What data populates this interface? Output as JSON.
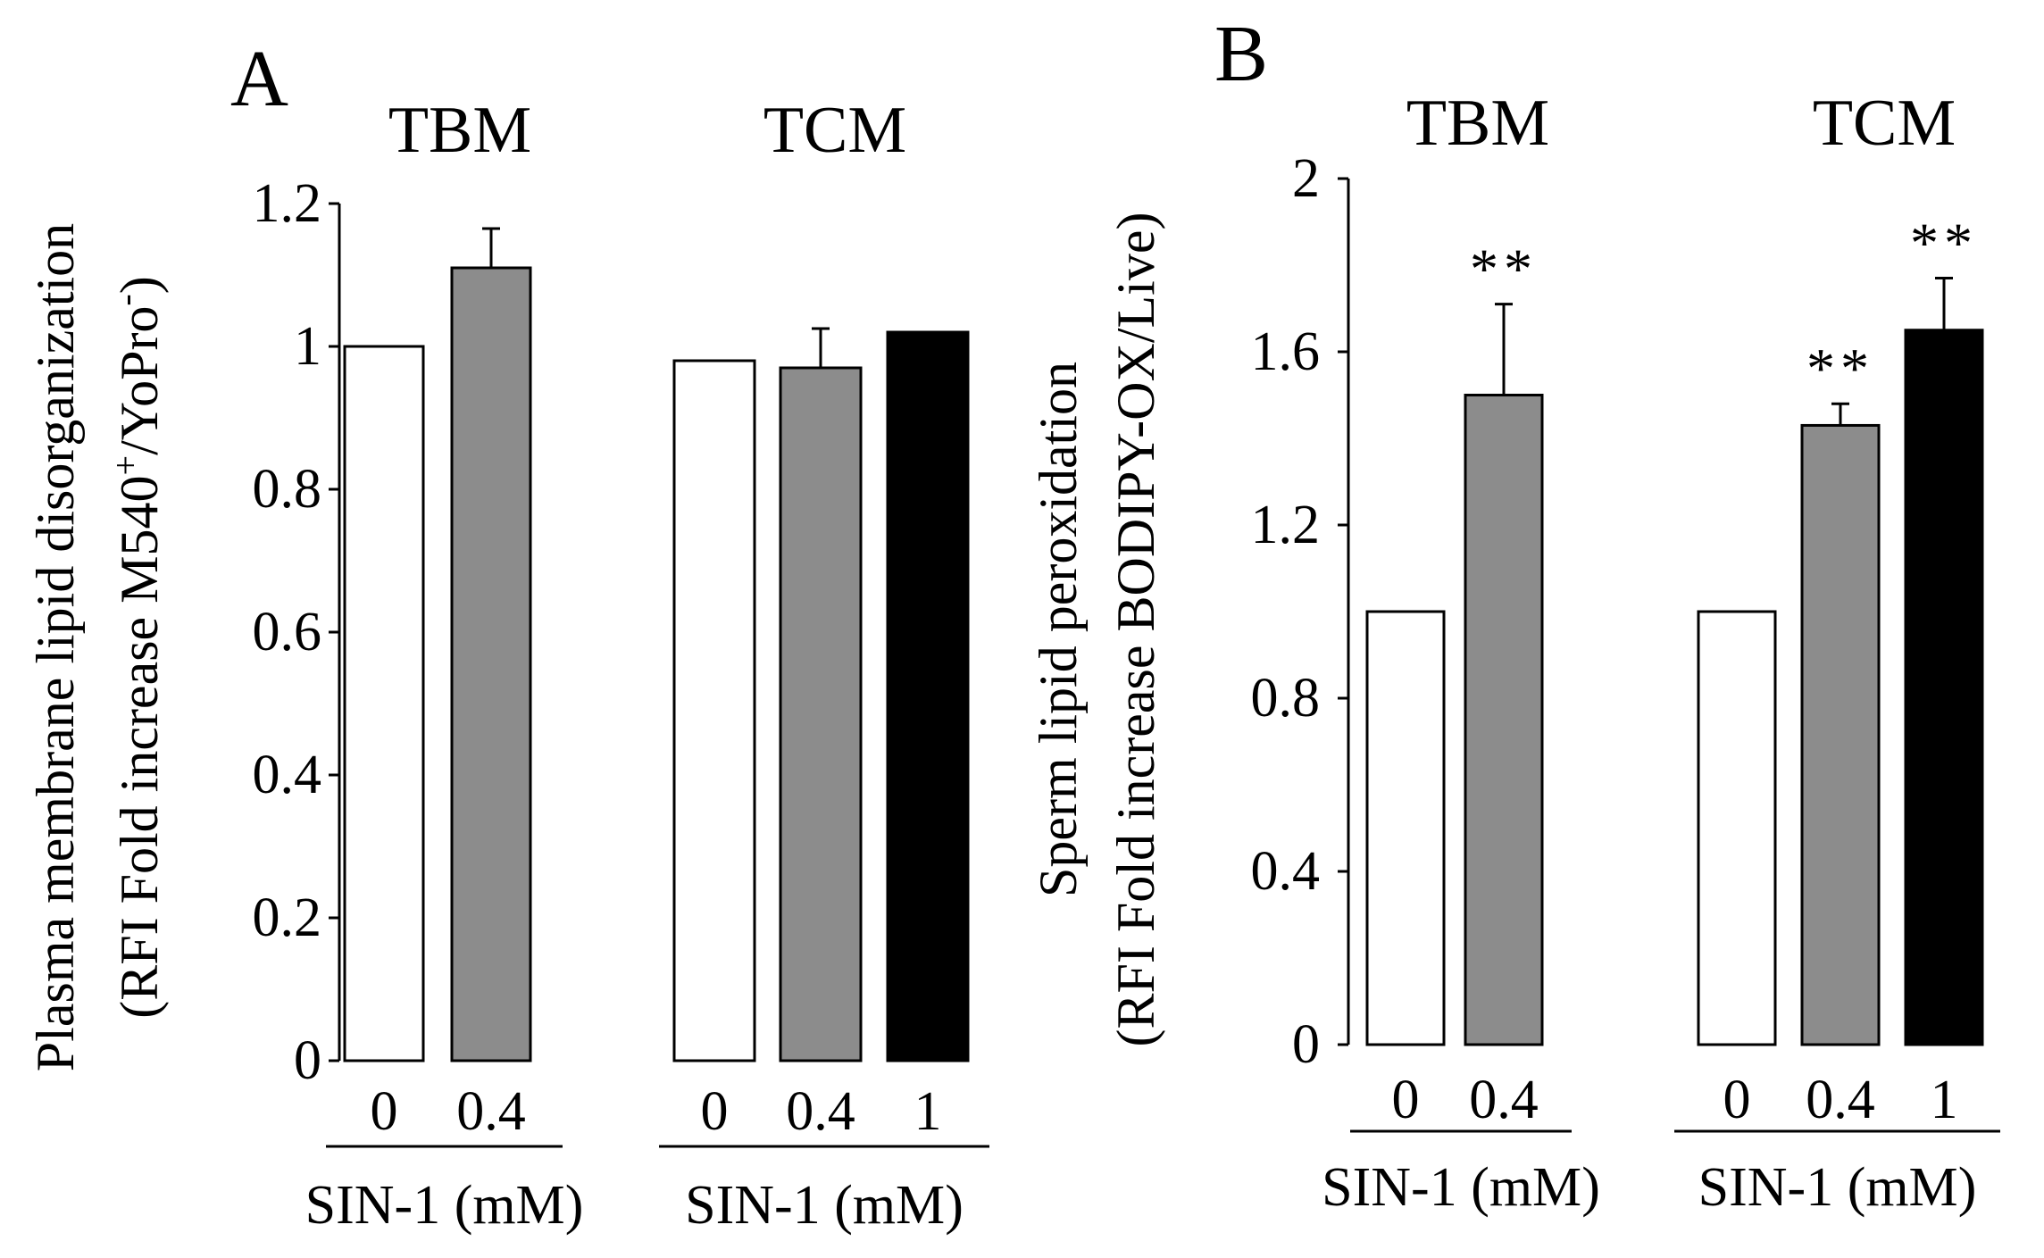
{
  "figure": {
    "panels": [
      {
        "letter": "A",
        "ylabel_line1": "Plasma membrane lipid disorganization",
        "ylabel_line2_main": "(RFI Fold increase M540",
        "ylabel_sup1": "+",
        "ylabel_mid": "/YoPro",
        "ylabel_sup2": "-",
        "ylabel_end": ")",
        "yticks": [
          "0",
          "0.2",
          "0.4",
          "0.6",
          "0.8",
          "1",
          "1.2"
        ]
      },
      {
        "letter": "B",
        "ylabel_line1": "Sperm lipid peroxidation",
        "ylabel_line2": "(RFI Fold increase BODIPY-OX/Live)",
        "yticks": [
          "0",
          "0.4",
          "0.8",
          "1.2",
          "1.6",
          "2"
        ]
      }
    ]
  },
  "chart_data": [
    {
      "type": "bar",
      "panel": "A",
      "ylabel": "Plasma membrane lipid disorganization (RFI Fold increase M540+/YoPro-)",
      "ylim": [
        0,
        1.2
      ],
      "yticks": [
        0,
        0.2,
        0.4,
        0.6,
        0.8,
        1,
        1.2
      ],
      "groups": [
        {
          "title": "TBM",
          "xlabel": "SIN-1 (mM)",
          "categories": [
            "0",
            "0.4"
          ],
          "values": [
            1.0,
            1.11
          ],
          "errors": [
            0.0,
            0.055
          ],
          "colors": [
            "#ffffff",
            "#8c8c8c"
          ],
          "annotations": [
            "",
            ""
          ]
        },
        {
          "title": "TCM",
          "xlabel": "SIN-1 (mM)",
          "categories": [
            "0",
            "0.4",
            "1"
          ],
          "values": [
            0.98,
            0.97,
            1.02
          ],
          "errors": [
            0.0,
            0.055,
            0.0
          ],
          "colors": [
            "#ffffff",
            "#8c8c8c",
            "#000000"
          ],
          "annotations": [
            "",
            "",
            ""
          ]
        }
      ]
    },
    {
      "type": "bar",
      "panel": "B",
      "ylabel": "Sperm lipid peroxidation (RFI Fold increase BODIPY-OX/Live)",
      "ylim": [
        0,
        2
      ],
      "yticks": [
        0,
        0.4,
        0.8,
        1.2,
        1.6,
        2
      ],
      "groups": [
        {
          "title": "TBM",
          "xlabel": "SIN-1 (mM)",
          "categories": [
            "0",
            "0.4"
          ],
          "values": [
            1.0,
            1.5
          ],
          "errors": [
            0.0,
            0.21
          ],
          "colors": [
            "#ffffff",
            "#8c8c8c"
          ],
          "annotations": [
            "",
            "**"
          ]
        },
        {
          "title": "TCM",
          "xlabel": "SIN-1 (mM)",
          "categories": [
            "0",
            "0.4",
            "1"
          ],
          "values": [
            1.0,
            1.43,
            1.65
          ],
          "errors": [
            0.0,
            0.05,
            0.12
          ],
          "colors": [
            "#ffffff",
            "#8c8c8c",
            "#000000"
          ],
          "annotations": [
            "",
            "**",
            "**"
          ]
        }
      ]
    }
  ]
}
